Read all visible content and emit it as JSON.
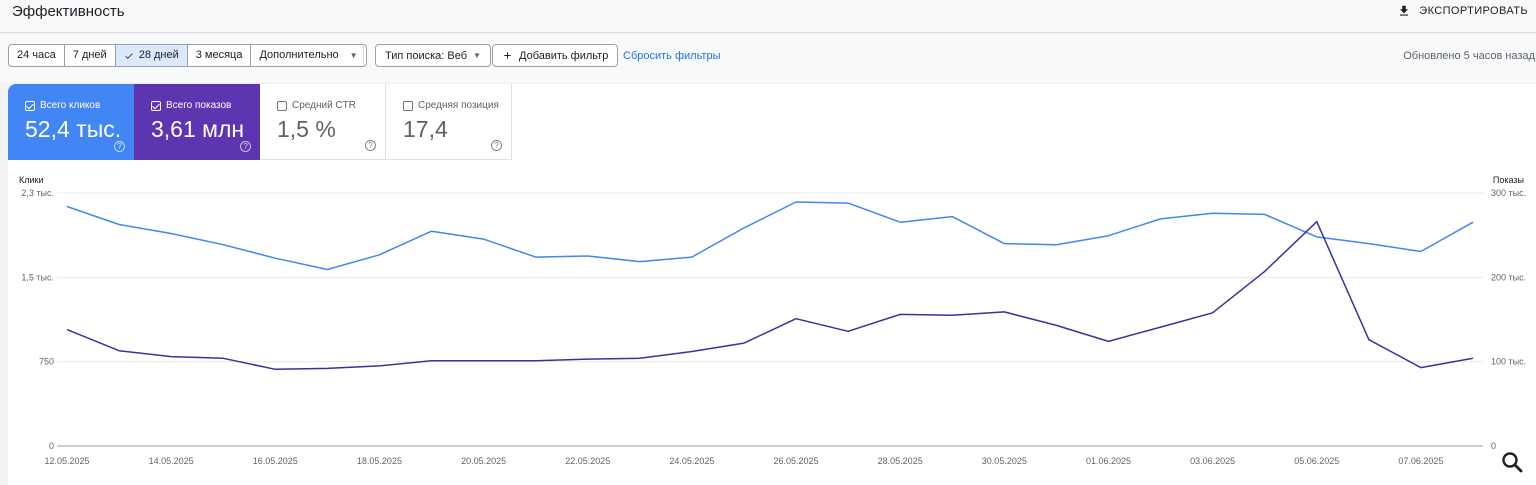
{
  "header": {
    "title": "Эффективность",
    "export_label": "ЭКСПОРТИРОВАТЬ"
  },
  "filters": {
    "date_ranges": [
      "24 часа",
      "7 дней",
      "28 дней",
      "3 месяца"
    ],
    "active_range": "28 дней",
    "more_label": "Дополнительно",
    "search_type_label": "Тип поиска: Веб",
    "add_filter_label": "Добавить фильтр",
    "reset_label": "Сбросить фильтры",
    "updated_text": "Обновлено 5 часов назад"
  },
  "metrics": [
    {
      "label": "Всего кликов",
      "value": "52,4 тыс.",
      "checked": true,
      "color": "#4285f4"
    },
    {
      "label": "Всего показов",
      "value": "3,61 млн",
      "checked": true,
      "color": "#5e35b1"
    },
    {
      "label": "Средний CTR",
      "value": "1,5 %",
      "checked": false
    },
    {
      "label": "Средняя позиция",
      "value": "17,4",
      "checked": false
    }
  ],
  "icons": {
    "export": "download-icon",
    "check": "check-icon",
    "add": "plus-icon",
    "help": "help-icon",
    "zoom": "search-icon"
  },
  "chart_data": {
    "type": "line",
    "left_axis": {
      "title": "Клики",
      "ticks": [
        0,
        750,
        1500,
        2300
      ],
      "tick_labels": [
        "0",
        "750",
        "1,5 тыс.",
        "2,3 тыс."
      ],
      "range": [
        0,
        2250
      ]
    },
    "right_axis": {
      "title": "Показы",
      "ticks": [
        0,
        100000,
        200000,
        300000
      ],
      "tick_labels": [
        "0",
        "100 тыс.",
        "200 тыс.",
        "300 тыс."
      ],
      "range": [
        0,
        300000
      ]
    },
    "x_dates": [
      "12.05.2025",
      "13.05.2025",
      "14.05.2025",
      "15.05.2025",
      "16.05.2025",
      "17.05.2025",
      "18.05.2025",
      "19.05.2025",
      "20.05.2025",
      "21.05.2025",
      "22.05.2025",
      "23.05.2025",
      "24.05.2025",
      "25.05.2025",
      "26.05.2025",
      "27.05.2025",
      "28.05.2025",
      "29.05.2025",
      "30.05.2025",
      "31.05.2025",
      "01.06.2025",
      "02.06.2025",
      "03.06.2025",
      "04.06.2025",
      "05.06.2025",
      "06.06.2025",
      "07.06.2025",
      "08.06.2025"
    ],
    "x_tick_labels": [
      "12.05.2025",
      "14.05.2025",
      "16.05.2025",
      "18.05.2025",
      "20.05.2025",
      "22.05.2025",
      "24.05.2025",
      "26.05.2025",
      "28.05.2025",
      "30.05.2025",
      "01.06.2025",
      "03.06.2025",
      "05.06.2025",
      "07.06.2025"
    ],
    "series": [
      {
        "name": "Всего кликов",
        "axis": "left",
        "color": "#4285f4",
        "values": [
          2130,
          1970,
          1890,
          1790,
          1670,
          1570,
          1700,
          1910,
          1840,
          1680,
          1690,
          1640,
          1680,
          1940,
          2170,
          2160,
          1990,
          2040,
          1800,
          1790,
          1870,
          2020,
          2070,
          2060,
          1860,
          1800,
          1730,
          1990
        ]
      },
      {
        "name": "Всего показов",
        "axis": "right",
        "color": "#3c2fa0",
        "values": [
          138000,
          113000,
          106000,
          104000,
          91000,
          92000,
          95000,
          101000,
          101000,
          101000,
          103000,
          104000,
          112000,
          122000,
          151000,
          136000,
          156000,
          155000,
          159000,
          143000,
          124000,
          141000,
          158000,
          207000,
          266000,
          126000,
          93000,
          104000
        ]
      }
    ]
  }
}
